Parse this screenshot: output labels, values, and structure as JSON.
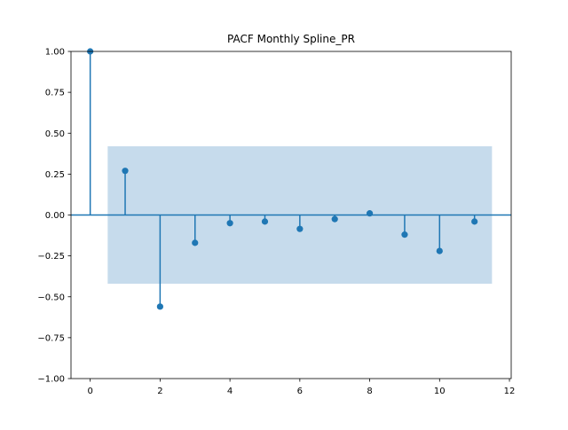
{
  "chart_data": {
    "type": "stem",
    "title": "PACF Monthly Spline_PR",
    "xlabel": "",
    "ylabel": "",
    "x": [
      0,
      1,
      2,
      3,
      4,
      5,
      6,
      7,
      8,
      9,
      10,
      11
    ],
    "values": [
      1.0,
      0.27,
      -0.56,
      -0.17,
      -0.05,
      -0.04,
      -0.085,
      -0.025,
      0.01,
      -0.12,
      -0.22,
      -0.04
    ],
    "confidence_band": {
      "x_range": [
        0.5,
        11.5
      ],
      "lower": -0.42,
      "upper": 0.42
    },
    "xlim": [
      -0.55,
      12.05
    ],
    "ylim": [
      -1.0,
      1.0
    ],
    "xticks": [
      0,
      2,
      4,
      6,
      8,
      10,
      12
    ],
    "xtick_labels": [
      "0",
      "2",
      "4",
      "6",
      "8",
      "10",
      "12"
    ],
    "yticks": [
      1.0,
      0.75,
      0.5,
      0.25,
      0.0,
      -0.25,
      -0.5,
      -0.75,
      -1.0
    ],
    "ytick_labels": [
      "1.00",
      "0.75",
      "0.50",
      "0.25",
      "0.00",
      "−0.25",
      "−0.50",
      "−0.75",
      "−1.00"
    ],
    "grid": false,
    "colors": {
      "stem": "#1f77b4",
      "band": "#c6dbec",
      "axes": "#000000"
    }
  }
}
